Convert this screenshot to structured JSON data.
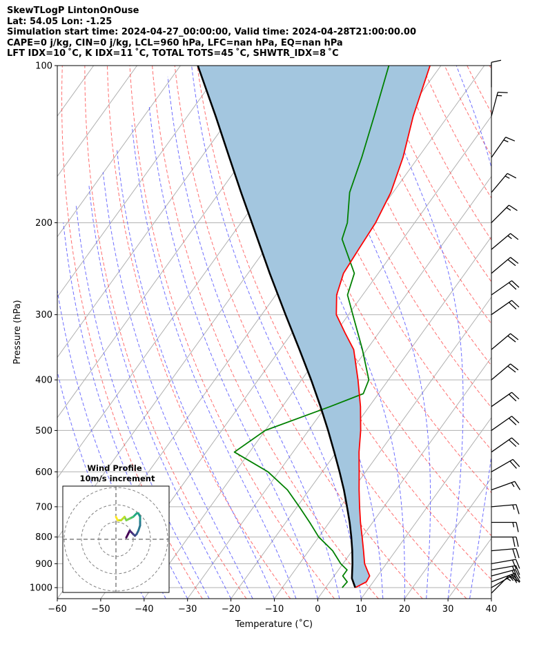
{
  "header": {
    "line1": "SkewTLogP LintonOnOuse",
    "line2": "Lat: 54.05   Lon: -1.25",
    "line3": "Simulation start time: 2024-04-27_00:00:00, Valid time: 2024-04-28T21:00:00.00",
    "line4": "CAPE=0 j/kg, CIN=0 j/kg, LCL=960 hPa, LFC=nan hPa, EQ=nan hPa",
    "line5": "LFT IDX=10 ˚C, K IDX=11 ˚C, TOTAL TOTS=45 ˚C, SHWTR_IDX=8 ˚C"
  },
  "chart_data": {
    "type": "skew-t log-p",
    "xlabel": "Temperature (˚C)",
    "ylabel": "Pressure (hPa)",
    "xlim": [
      -60,
      40
    ],
    "ylim": [
      1050,
      100
    ],
    "x_ticks": [
      "−60",
      "−50",
      "−40",
      "−30",
      "−20",
      "−10",
      "0",
      "10",
      "20",
      "30",
      "40"
    ],
    "y_ticks": [
      {
        "p": 100,
        "label": "100"
      },
      {
        "p": 200,
        "label": "200"
      },
      {
        "p": 300,
        "label": "300"
      },
      {
        "p": 400,
        "label": "400"
      },
      {
        "p": 500,
        "label": "500"
      },
      {
        "p": 600,
        "label": "600"
      },
      {
        "p": 700,
        "label": "700"
      },
      {
        "p": 800,
        "label": "800"
      },
      {
        "p": 900,
        "label": "900"
      },
      {
        "p": 1000,
        "label": "1000"
      }
    ],
    "grid": true,
    "series": [
      {
        "role": "temperature",
        "color": "#ff0000",
        "p": [
          1000,
          975,
          950,
          925,
          900,
          850,
          800,
          750,
          700,
          650,
          600,
          550,
          500,
          450,
          400,
          350,
          325,
          300,
          275,
          250,
          225,
          200,
          175,
          150,
          125,
          100
        ],
        "t": [
          6.8,
          8.4,
          8.2,
          6.6,
          5.0,
          2.6,
          0.0,
          -2.8,
          -5.6,
          -8.5,
          -11.5,
          -14.8,
          -18.0,
          -22.0,
          -27.0,
          -33.0,
          -37.8,
          -42.8,
          -46.0,
          -48.0,
          -48.5,
          -49.0,
          -50.5,
          -53.5,
          -58.0,
          -62.5
        ]
      },
      {
        "role": "dewpoint",
        "color": "#008000",
        "p": [
          1000,
          975,
          950,
          925,
          900,
          850,
          800,
          750,
          700,
          650,
          600,
          550,
          500,
          450,
          425,
          400,
          350,
          300,
          275,
          250,
          215,
          200,
          175,
          150,
          125,
          100
        ],
        "t": [
          3.8,
          4.0,
          2.0,
          2.0,
          -0.5,
          -4.5,
          -10.0,
          -14.5,
          -19.5,
          -25.0,
          -32.5,
          -43.5,
          -40.0,
          -29.0,
          -23.5,
          -24.5,
          -31.0,
          -39.0,
          -43.5,
          -45.5,
          -54.0,
          -55.5,
          -60.0,
          -63.0,
          -67.0,
          -72.0
        ]
      },
      {
        "role": "parcel",
        "color": "#000000",
        "p": [
          1000,
          960,
          900,
          850,
          800,
          750,
          700,
          650,
          600,
          550,
          500,
          450,
          400,
          350,
          300,
          250,
          200,
          175,
          150,
          125,
          100
        ],
        "t": [
          6.8,
          4.5,
          2.2,
          0.0,
          -2.5,
          -5.3,
          -8.5,
          -12.0,
          -16.0,
          -20.5,
          -25.5,
          -31.2,
          -37.8,
          -45.5,
          -54.5,
          -65.0,
          -77.5,
          -85.0,
          -93.5,
          -103.5,
          -116.0
        ]
      }
    ],
    "shaded_area": {
      "label": "CIN area between parcel and temperature",
      "color": "#a3c6df"
    },
    "wind_barbs": [
      {
        "p": 1025,
        "speed_kt": 15,
        "dir_deg": 225
      },
      {
        "p": 1000,
        "speed_kt": 15,
        "dir_deg": 240
      },
      {
        "p": 975,
        "speed_kt": 20,
        "dir_deg": 250
      },
      {
        "p": 950,
        "speed_kt": 20,
        "dir_deg": 255
      },
      {
        "p": 925,
        "speed_kt": 20,
        "dir_deg": 260
      },
      {
        "p": 900,
        "speed_kt": 20,
        "dir_deg": 260
      },
      {
        "p": 850,
        "speed_kt": 20,
        "dir_deg": 265
      },
      {
        "p": 800,
        "speed_kt": 20,
        "dir_deg": 270
      },
      {
        "p": 750,
        "speed_kt": 15,
        "dir_deg": 270
      },
      {
        "p": 700,
        "speed_kt": 15,
        "dir_deg": 265
      },
      {
        "p": 650,
        "speed_kt": 15,
        "dir_deg": 250
      },
      {
        "p": 600,
        "speed_kt": 20,
        "dir_deg": 240
      },
      {
        "p": 550,
        "speed_kt": 20,
        "dir_deg": 235
      },
      {
        "p": 500,
        "speed_kt": 20,
        "dir_deg": 235
      },
      {
        "p": 450,
        "speed_kt": 20,
        "dir_deg": 235
      },
      {
        "p": 400,
        "speed_kt": 20,
        "dir_deg": 230
      },
      {
        "p": 350,
        "speed_kt": 20,
        "dir_deg": 230
      },
      {
        "p": 300,
        "speed_kt": 20,
        "dir_deg": 235
      },
      {
        "p": 275,
        "speed_kt": 20,
        "dir_deg": 235
      },
      {
        "p": 250,
        "speed_kt": 20,
        "dir_deg": 230
      },
      {
        "p": 225,
        "speed_kt": 15,
        "dir_deg": 230
      },
      {
        "p": 200,
        "speed_kt": 15,
        "dir_deg": 225
      },
      {
        "p": 175,
        "speed_kt": 15,
        "dir_deg": 220
      },
      {
        "p": 150,
        "speed_kt": 15,
        "dir_deg": 215
      },
      {
        "p": 125,
        "speed_kt": 15,
        "dir_deg": 195
      },
      {
        "p": 110,
        "speed_kt": 10,
        "dir_deg": 180
      }
    ],
    "hodograph": {
      "title": "Wind Profile",
      "subtitle": "10m/s increment",
      "rings_ms": [
        10,
        20,
        30
      ],
      "u": [
        6,
        7,
        8,
        9,
        10,
        11,
        12,
        13,
        14,
        14,
        14,
        13,
        12,
        10,
        8,
        6,
        5,
        3,
        1,
        0
      ],
      "v": [
        1,
        3,
        5,
        4,
        3,
        2,
        3,
        5,
        8,
        11,
        13,
        15,
        15,
        13,
        12,
        11,
        13,
        11,
        11,
        13
      ]
    }
  }
}
